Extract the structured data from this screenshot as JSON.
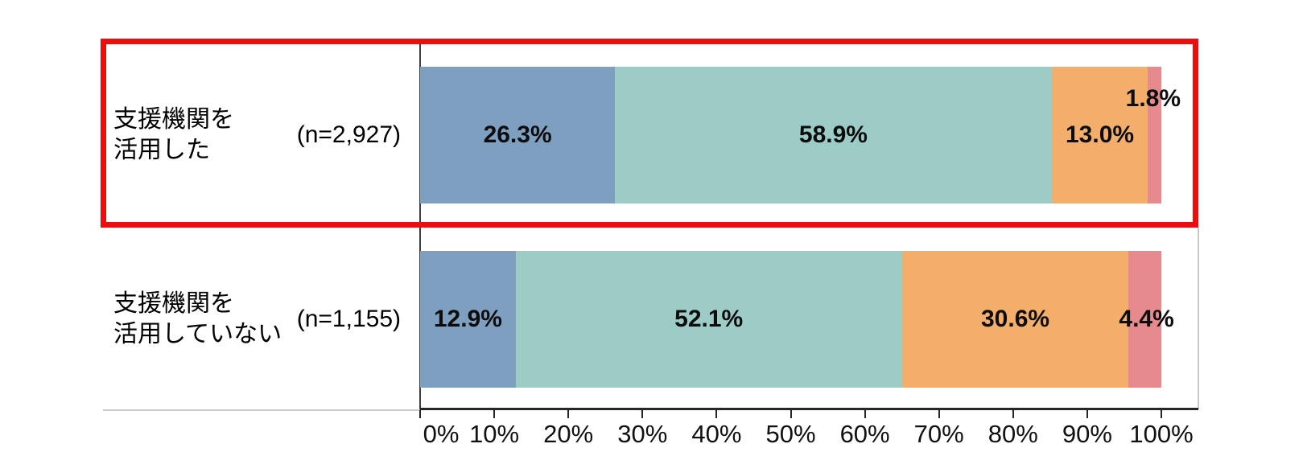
{
  "chart": {
    "highlight_color": "#ec0d0d",
    "axis": {
      "ticks": [
        "0%",
        "10%",
        "20%",
        "30%",
        "40%",
        "50%",
        "60%",
        "70%",
        "80%",
        "90%",
        "100%"
      ]
    },
    "rows": [
      {
        "label_lines": [
          "支援機関を",
          "活用した"
        ],
        "n_label": "(n=2,927)",
        "highlighted": true,
        "segments": [
          {
            "value": 26.3,
            "label": "26.3%",
            "color": "#7f9fc1",
            "label_pos": "center"
          },
          {
            "value": 58.9,
            "label": "58.9%",
            "color": "#9dccc6",
            "label_pos": "center"
          },
          {
            "value": 13.0,
            "label": "13.0%",
            "color": "#f4ae6c",
            "label_pos": "center"
          },
          {
            "value": 1.8,
            "label": "1.8%",
            "color": "#e78a8e",
            "label_pos": "above-right"
          }
        ]
      },
      {
        "label_lines": [
          "支援機関を",
          "活用していない"
        ],
        "n_label": "(n=1,155)",
        "highlighted": false,
        "segments": [
          {
            "value": 12.9,
            "label": "12.9%",
            "color": "#7f9fc1",
            "label_pos": "center"
          },
          {
            "value": 52.1,
            "label": "52.1%",
            "color": "#9dccc6",
            "label_pos": "center"
          },
          {
            "value": 30.6,
            "label": "30.6%",
            "color": "#f4ae6c",
            "label_pos": "center"
          },
          {
            "value": 4.4,
            "label": "4.4%",
            "color": "#e78a8e",
            "label_pos": "overlay-center"
          }
        ]
      }
    ]
  },
  "chart_data": {
    "type": "bar",
    "orientation": "horizontal",
    "stacked": true,
    "title": "",
    "xlabel": "",
    "ylabel": "",
    "xlim": [
      0,
      100
    ],
    "x_tick_labels": [
      "0%",
      "10%",
      "20%",
      "30%",
      "40%",
      "50%",
      "60%",
      "70%",
      "80%",
      "90%",
      "100%"
    ],
    "grid": false,
    "legend": "none",
    "categories": [
      "支援機関を活用した (n=2,927)",
      "支援機関を活用していない (n=1,155)"
    ],
    "series": [
      {
        "name": "segment-1",
        "color": "#7f9fc1",
        "values": [
          26.3,
          12.9
        ]
      },
      {
        "name": "segment-2",
        "color": "#9dccc6",
        "values": [
          58.9,
          52.1
        ]
      },
      {
        "name": "segment-3",
        "color": "#f4ae6c",
        "values": [
          13.0,
          30.6
        ]
      },
      {
        "name": "segment-4",
        "color": "#e78a8e",
        "values": [
          1.8,
          4.4
        ]
      }
    ],
    "annotations": [
      "first category row is outlined with a red highlight box"
    ]
  }
}
